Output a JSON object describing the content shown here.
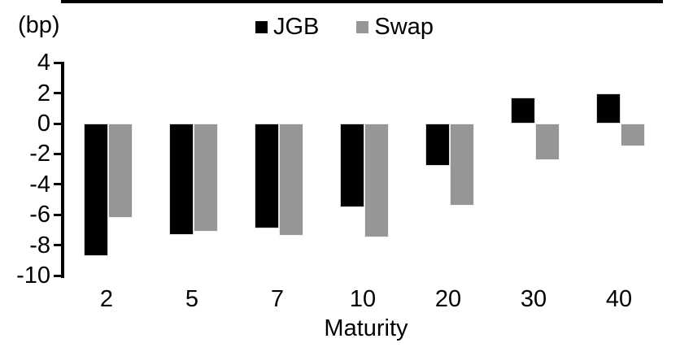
{
  "unit_label": "(bp)",
  "colors": {
    "jgb": "#000000",
    "swap": "#969696",
    "axis": "#000000",
    "background": "#ffffff"
  },
  "legend": [
    {
      "label": "JGB",
      "color": "#000000"
    },
    {
      "label": "Swap",
      "color": "#969696"
    }
  ],
  "chart_data": {
    "type": "bar",
    "title": "",
    "xlabel": "Maturity",
    "ylabel": "(bp)",
    "categories": [
      "2",
      "5",
      "7",
      "10",
      "20",
      "30",
      "40"
    ],
    "series": [
      {
        "name": "JGB",
        "color": "#000000",
        "values": [
          -8.7,
          -7.3,
          -6.9,
          -5.5,
          -2.8,
          1.7,
          2.0
        ]
      },
      {
        "name": "Swap",
        "color": "#969696",
        "values": [
          -6.2,
          -7.1,
          -7.4,
          -7.5,
          -5.4,
          -2.4,
          -1.5
        ]
      }
    ],
    "ylim": [
      -10,
      4
    ],
    "yticks": [
      4,
      2,
      0,
      -2,
      -4,
      -6,
      -8,
      -10
    ],
    "grid": false,
    "legend_position": "top-center",
    "zero_line_emphasized": true
  }
}
